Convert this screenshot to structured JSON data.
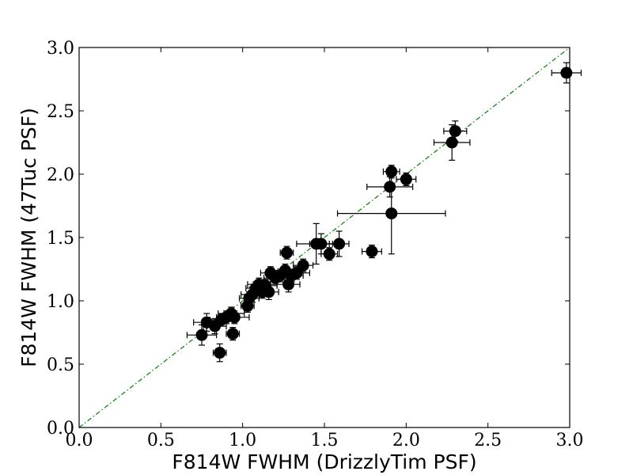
{
  "chart_data": {
    "type": "scatter",
    "title": "",
    "xlabel": "F814W FWHM (DrizzlyTim PSF)",
    "ylabel": "F814W FWHM (47Tuc PSF)",
    "xlim": [
      0.0,
      3.0
    ],
    "ylim": [
      0.0,
      3.0
    ],
    "xticks": [
      "0.0",
      "0.5",
      "1.0",
      "1.5",
      "2.0",
      "2.5",
      "3.0"
    ],
    "yticks": [
      "0.0",
      "0.5",
      "1.0",
      "1.5",
      "2.0",
      "2.5",
      "3.0"
    ],
    "grid": false,
    "legend": "none",
    "reference_line": {
      "x": [
        0.0,
        3.0
      ],
      "y": [
        0.0,
        3.0
      ],
      "style": "dash-dot",
      "color": "#008000"
    },
    "marker_color": "#000000",
    "series": [
      {
        "points": [
          {
            "x": 0.75,
            "y": 0.73,
            "xerr": 0.09,
            "yerr": 0.08
          },
          {
            "x": 0.78,
            "y": 0.83,
            "xerr": 0.08,
            "yerr": 0.07
          },
          {
            "x": 0.83,
            "y": 0.8,
            "xerr": 0.07,
            "yerr": 0.06
          },
          {
            "x": 0.86,
            "y": 0.59,
            "xerr": 0.04,
            "yerr": 0.07
          },
          {
            "x": 0.87,
            "y": 0.85,
            "xerr": 0.07,
            "yerr": 0.05
          },
          {
            "x": 0.9,
            "y": 0.87,
            "xerr": 0.06,
            "yerr": 0.05
          },
          {
            "x": 0.93,
            "y": 0.9,
            "xerr": 0.08,
            "yerr": 0.05
          },
          {
            "x": 0.94,
            "y": 0.74,
            "xerr": 0.04,
            "yerr": 0.05
          },
          {
            "x": 0.95,
            "y": 0.87,
            "xerr": 0.09,
            "yerr": 0.05
          },
          {
            "x": 1.03,
            "y": 0.96,
            "xerr": 0.04,
            "yerr": 0.05
          },
          {
            "x": 1.04,
            "y": 1.02,
            "xerr": 0.06,
            "yerr": 0.05
          },
          {
            "x": 1.06,
            "y": 1.05,
            "xerr": 0.07,
            "yerr": 0.06
          },
          {
            "x": 1.08,
            "y": 1.1,
            "xerr": 0.06,
            "yerr": 0.05
          },
          {
            "x": 1.1,
            "y": 1.13,
            "xerr": 0.07,
            "yerr": 0.05
          },
          {
            "x": 1.12,
            "y": 1.07,
            "xerr": 0.06,
            "yerr": 0.05
          },
          {
            "x": 1.14,
            "y": 1.12,
            "xerr": 0.07,
            "yerr": 0.05
          },
          {
            "x": 1.16,
            "y": 1.07,
            "xerr": 0.06,
            "yerr": 0.06
          },
          {
            "x": 1.17,
            "y": 1.22,
            "xerr": 0.06,
            "yerr": 0.05
          },
          {
            "x": 1.2,
            "y": 1.18,
            "xerr": 0.07,
            "yerr": 0.05
          },
          {
            "x": 1.23,
            "y": 1.2,
            "xerr": 0.06,
            "yerr": 0.05
          },
          {
            "x": 1.26,
            "y": 1.24,
            "xerr": 0.07,
            "yerr": 0.05
          },
          {
            "x": 1.27,
            "y": 1.38,
            "xerr": 0.04,
            "yerr": 0.05
          },
          {
            "x": 1.28,
            "y": 1.13,
            "xerr": 0.07,
            "yerr": 0.06
          },
          {
            "x": 1.3,
            "y": 1.2,
            "xerr": 0.07,
            "yerr": 0.05
          },
          {
            "x": 1.33,
            "y": 1.22,
            "xerr": 0.08,
            "yerr": 0.05
          },
          {
            "x": 1.37,
            "y": 1.28,
            "xerr": 0.06,
            "yerr": 0.05
          },
          {
            "x": 1.45,
            "y": 1.45,
            "xerr": 0.12,
            "yerr": 0.16
          },
          {
            "x": 1.48,
            "y": 1.45,
            "xerr": 0.07,
            "yerr": 0.08
          },
          {
            "x": 1.53,
            "y": 1.37,
            "xerr": 0.05,
            "yerr": 0.05
          },
          {
            "x": 1.59,
            "y": 1.45,
            "xerr": 0.06,
            "yerr": 0.1
          },
          {
            "x": 1.79,
            "y": 1.39,
            "xerr": 0.06,
            "yerr": 0.05
          },
          {
            "x": 1.9,
            "y": 1.9,
            "xerr": 0.14,
            "yerr": 0.08
          },
          {
            "x": 1.91,
            "y": 2.02,
            "xerr": 0.05,
            "yerr": 0.05
          },
          {
            "x": 1.91,
            "y": 1.69,
            "xerr": 0.33,
            "yerr": 0.32
          },
          {
            "x": 2.0,
            "y": 1.96,
            "xerr": 0.06,
            "yerr": 0.05
          },
          {
            "x": 2.28,
            "y": 2.25,
            "xerr": 0.11,
            "yerr": 0.14
          },
          {
            "x": 2.3,
            "y": 2.34,
            "xerr": 0.07,
            "yerr": 0.08
          },
          {
            "x": 2.98,
            "y": 2.8,
            "xerr": 0.09,
            "yerr": 0.08
          }
        ]
      }
    ]
  }
}
